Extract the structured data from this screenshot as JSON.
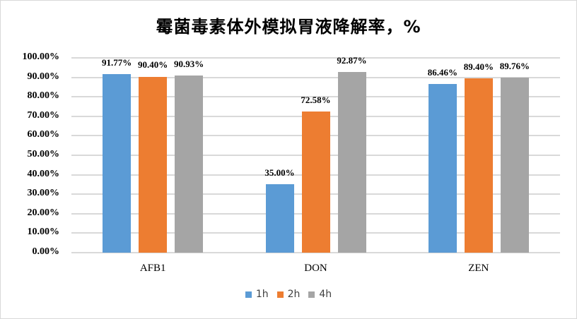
{
  "chart_data": {
    "type": "bar",
    "title": "霉菌毒素体外模拟胃液降解率，%",
    "xlabel": "",
    "ylabel": "",
    "categories": [
      "AFB1",
      "DON",
      "ZEN"
    ],
    "series": [
      {
        "name": "1h",
        "color": "#5b9bd5",
        "values": [
          91.77,
          35.0,
          86.46
        ],
        "labels": [
          "91.77%",
          "35.00%",
          "86.46%"
        ]
      },
      {
        "name": "2h",
        "color": "#ed7d31",
        "values": [
          90.4,
          72.58,
          89.4
        ],
        "labels": [
          "90.40%",
          "72.58%",
          "89.40%"
        ]
      },
      {
        "name": "4h",
        "color": "#a5a5a5",
        "values": [
          90.93,
          92.87,
          89.76
        ],
        "labels": [
          "90.93%",
          "92.87%",
          "89.76%"
        ]
      }
    ],
    "ylim": [
      0,
      100
    ],
    "yticks": [
      "0.00%",
      "10.00%",
      "20.00%",
      "30.00%",
      "40.00%",
      "50.00%",
      "60.00%",
      "70.00%",
      "80.00%",
      "90.00%",
      "100.00%"
    ],
    "grid": true,
    "legend_position": "bottom"
  }
}
